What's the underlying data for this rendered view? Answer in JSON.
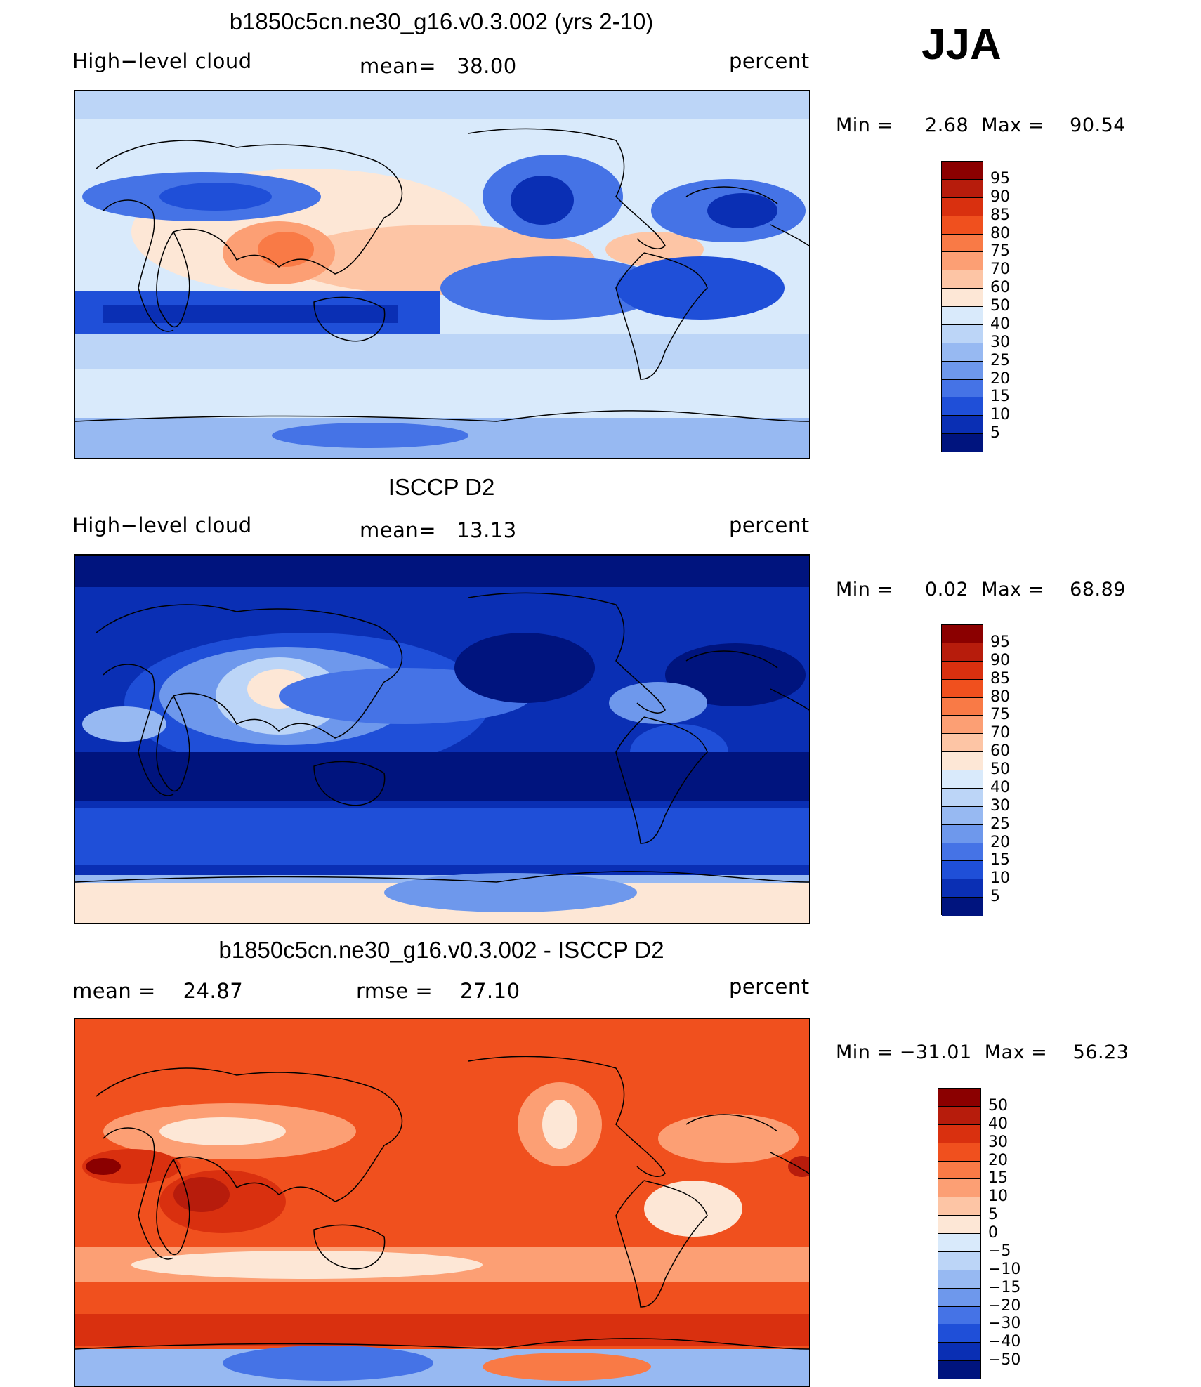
{
  "season": "JJA",
  "panels": [
    {
      "id": "model",
      "title": "b1850c5cn.ne30_g16.v0.3.002 (yrs 2-10)",
      "left_label": "High−level cloud",
      "center_label": "mean=   38.00",
      "right_label": "percent",
      "minmax": "Min =     2.68  Max =    90.54",
      "colorbar": {
        "levels": [
          "95",
          "90",
          "85",
          "80",
          "75",
          "70",
          "60",
          "50",
          "40",
          "30",
          "25",
          "20",
          "15",
          "10",
          "5"
        ],
        "colors": [
          "#8b0000",
          "#b71c0c",
          "#d9300f",
          "#f0501e",
          "#f97a46",
          "#fc9f74",
          "#fdc5a5",
          "#fde7d6",
          "#d9eafb",
          "#bcd5f7",
          "#97b9f2",
          "#6e98ec",
          "#4573e6",
          "#1f4fd8",
          "#0a2fb4",
          "#00147e"
        ]
      }
    },
    {
      "id": "obs",
      "title": "ISCCP D2",
      "left_label": "High−level cloud",
      "center_label": "mean=   13.13",
      "right_label": "percent",
      "minmax": "Min =     0.02  Max =    68.89",
      "colorbar": {
        "levels": [
          "95",
          "90",
          "85",
          "80",
          "75",
          "70",
          "60",
          "50",
          "40",
          "30",
          "25",
          "20",
          "15",
          "10",
          "5"
        ],
        "colors": [
          "#8b0000",
          "#b71c0c",
          "#d9300f",
          "#f0501e",
          "#f97a46",
          "#fc9f74",
          "#fdc5a5",
          "#fde7d6",
          "#d9eafb",
          "#bcd5f7",
          "#97b9f2",
          "#6e98ec",
          "#4573e6",
          "#1f4fd8",
          "#0a2fb4",
          "#00147e"
        ]
      }
    },
    {
      "id": "diff",
      "title": "b1850c5cn.ne30_g16.v0.3.002 - ISCCP D2",
      "left_label": "mean =    24.87",
      "center_label": "rmse =    27.10",
      "right_label": "percent",
      "minmax": "Min = −31.01  Max =    56.23",
      "colorbar": {
        "levels": [
          "50",
          "40",
          "30",
          "20",
          "15",
          "10",
          "5",
          "0",
          "−5",
          "−10",
          "−15",
          "−20",
          "−30",
          "−40",
          "−50"
        ],
        "colors": [
          "#8b0000",
          "#b71c0c",
          "#d9300f",
          "#f0501e",
          "#f97a46",
          "#fc9f74",
          "#fdc5a5",
          "#fde7d6",
          "#d9eafb",
          "#bcd5f7",
          "#97b9f2",
          "#6e98ec",
          "#4573e6",
          "#1f4fd8",
          "#0a2fb4",
          "#00147e"
        ]
      }
    }
  ]
}
